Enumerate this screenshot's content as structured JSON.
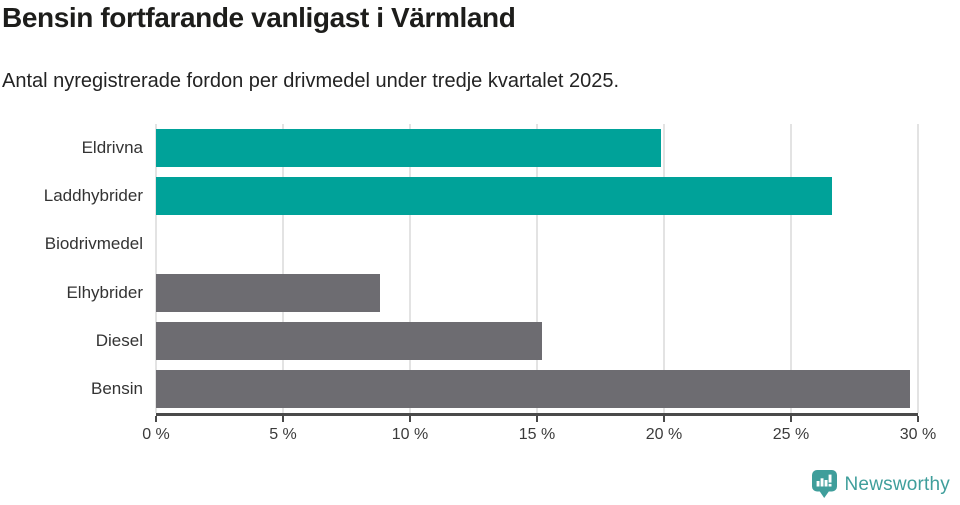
{
  "header": {
    "title": "Bensin fortfarande vanligast i Värmland",
    "subtitle": "Antal nyregistrerade fordon per drivmedel under tredje kvartalet 2025."
  },
  "chart_data": {
    "type": "bar",
    "orientation": "horizontal",
    "title": "Bensin fortfarande vanligast i Värmland",
    "subtitle": "Antal nyregistrerade fordon per drivmedel under tredje kvartalet 2025.",
    "categories": [
      "Eldrivna",
      "Laddhybrider",
      "Biodrivmedel",
      "Elhybrider",
      "Diesel",
      "Bensin"
    ],
    "values": [
      19.9,
      26.6,
      0,
      8.8,
      15.2,
      29.7
    ],
    "bar_colors": [
      "#00a299",
      "#00a299",
      "#00a299",
      "#6d6c71",
      "#6d6c71",
      "#6d6c71"
    ],
    "xlim": [
      0,
      30
    ],
    "x_ticks": [
      0,
      5,
      10,
      15,
      20,
      25,
      30
    ],
    "x_tick_labels": [
      "0 %",
      "5 %",
      "10 %",
      "15 %",
      "20 %",
      "25 %",
      "30 %"
    ],
    "grid": "vertical",
    "legend": "none"
  },
  "branding": {
    "wordmark": "Newsworthy",
    "logo_icon": "bar-chart-speech-bubble-icon",
    "brand_color": "#3f9e9b"
  },
  "style": {
    "bar_teal": "#00a299",
    "bar_gray": "#6d6c71",
    "gridline_color": "#e3e3e3",
    "axis_color": "#4a4a4a"
  }
}
